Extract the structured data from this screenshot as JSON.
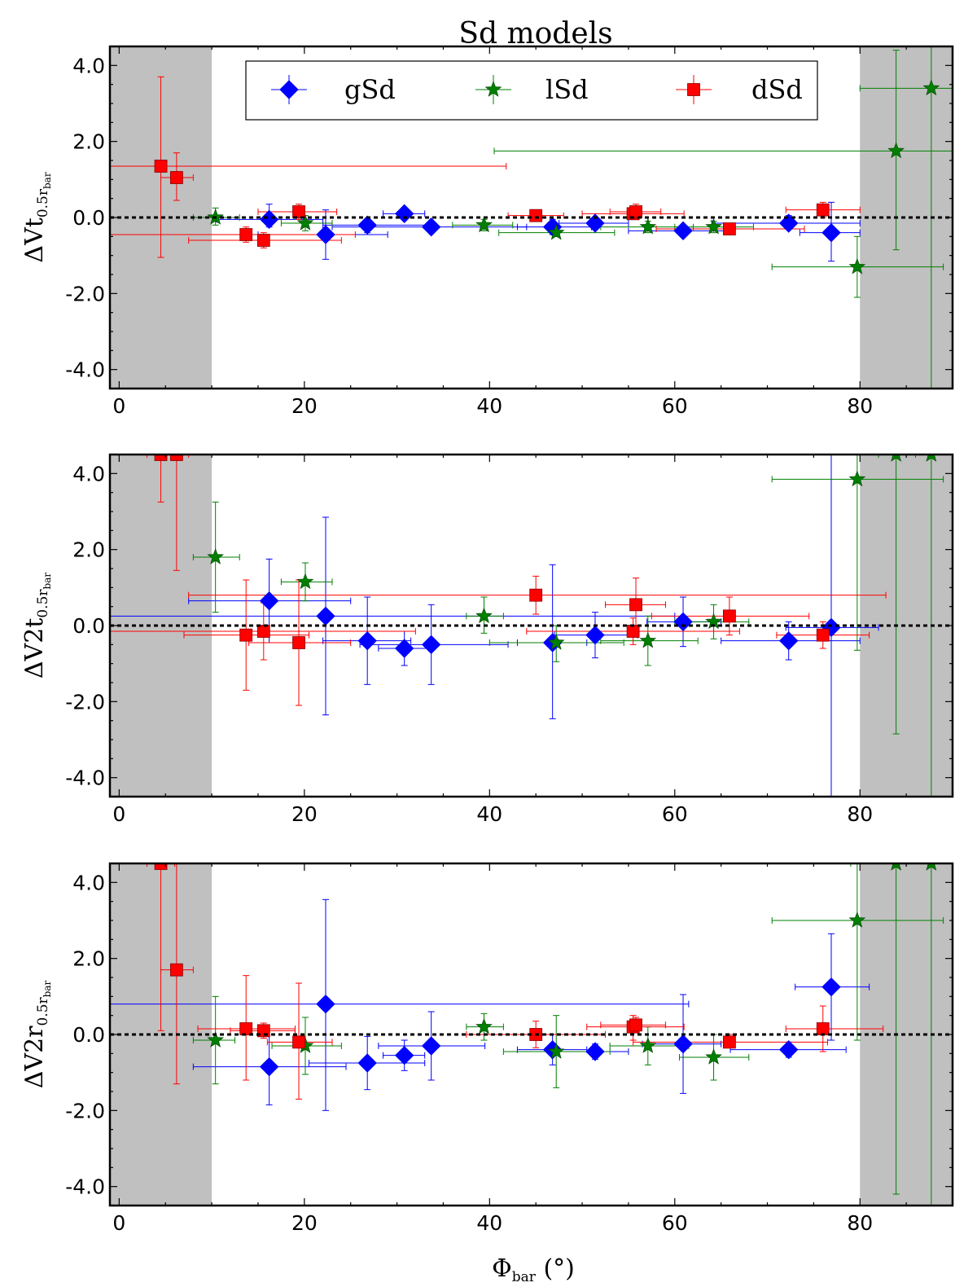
{
  "chart_data": {
    "type": "scatter",
    "title": "Sd models",
    "xlabel": "Φ",
    "xlabel_sub": "bar",
    "xlabel_unit": "(°)",
    "xlim": [
      -1,
      90
    ],
    "ylim": [
      -4.5,
      4.5
    ],
    "x_ticks": [
      "0",
      "20",
      "40",
      "60",
      "80"
    ],
    "y_ticks": [
      "4.0",
      "2.0",
      "0.0",
      "-2.0",
      "-4.0"
    ],
    "shaded_x_ranges": [
      [
        -1,
        10
      ],
      [
        80,
        90
      ]
    ],
    "reference_line_y": 0,
    "legend": [
      {
        "label": "gSd",
        "marker": "diamond",
        "color": "#0000ff"
      },
      {
        "label": "lSd",
        "marker": "star",
        "color": "#007f00"
      },
      {
        "label": "dSd",
        "marker": "square",
        "color": "#ff0000"
      }
    ],
    "panels": [
      {
        "ylabel_main": "ΔVt",
        "ylabel_sub": "0.5r",
        "ylabel_subsub": "bar",
        "series": [
          {
            "name": "gSd",
            "points": [
              {
                "x": 16.2,
                "y": -0.05,
                "xlo": 10.5,
                "xhi": 22.0,
                "ylo": -0.25,
                "yhi": 0.35
              },
              {
                "x": 22.3,
                "y": -0.45,
                "xlo": 15.0,
                "xhi": 29.0,
                "ylo": -1.1,
                "yhi": 0.2
              },
              {
                "x": 26.8,
                "y": -0.2,
                "xlo": 22.0,
                "xhi": 34.0,
                "ylo": -0.4,
                "yhi": -0.05
              },
              {
                "x": 30.8,
                "y": 0.1,
                "xlo": 28.5,
                "xhi": 33.0,
                "ylo": -0.05,
                "yhi": 0.25
              },
              {
                "x": 33.7,
                "y": -0.25,
                "xlo": 23.0,
                "xhi": 44.0,
                "ylo": -0.4,
                "yhi": -0.1
              },
              {
                "x": 46.8,
                "y": -0.25,
                "xlo": 43.0,
                "xhi": 51.0,
                "ylo": -0.45,
                "yhi": -0.05
              },
              {
                "x": 51.4,
                "y": -0.15,
                "xlo": 47.5,
                "xhi": 55.0,
                "ylo": -0.3,
                "yhi": 0.0
              },
              {
                "x": 60.9,
                "y": -0.35,
                "xlo": 55.0,
                "xhi": 66.5,
                "ylo": -0.5,
                "yhi": -0.2
              },
              {
                "x": 72.3,
                "y": -0.15,
                "xlo": 64.0,
                "xhi": 80.0,
                "ylo": -0.3,
                "yhi": 0.05
              },
              {
                "x": 76.9,
                "y": -0.4,
                "xlo": 73.5,
                "xhi": 80.0,
                "ylo": -1.15,
                "yhi": 0.4
              }
            ]
          },
          {
            "name": "lSd",
            "points": [
              {
                "x": 10.4,
                "y": 0.0,
                "xlo": 8.0,
                "xhi": 13.0,
                "ylo": -0.2,
                "yhi": 0.25
              },
              {
                "x": 20.1,
                "y": -0.15,
                "xlo": 17.5,
                "xhi": 23.0,
                "ylo": -0.35,
                "yhi": 0.05
              },
              {
                "x": 39.4,
                "y": -0.2,
                "xlo": 36.0,
                "xhi": 42.5,
                "ylo": -0.35,
                "yhi": -0.05
              },
              {
                "x": 47.2,
                "y": -0.4,
                "xlo": 41.0,
                "xhi": 53.5,
                "ylo": -0.5,
                "yhi": -0.25
              },
              {
                "x": 57.1,
                "y": -0.25,
                "xlo": 52.0,
                "xhi": 62.0,
                "ylo": -0.4,
                "yhi": -0.1
              },
              {
                "x": 64.2,
                "y": -0.25,
                "xlo": 60.0,
                "xhi": 68.5,
                "ylo": -0.4,
                "yhi": -0.1
              },
              {
                "x": 79.7,
                "y": -1.3,
                "xlo": 70.5,
                "xhi": 89.0,
                "ylo": -2.1,
                "yhi": -0.5
              },
              {
                "x": 83.9,
                "y": 1.75,
                "xlo": 40.5,
                "xhi": 90.0,
                "ylo": -0.85,
                "yhi": 4.4
              },
              {
                "x": 87.7,
                "y": 3.4,
                "xlo": 80.0,
                "xhi": 90.0,
                "ylo": -4.5,
                "yhi": 4.5
              }
            ]
          },
          {
            "name": "dSd",
            "points": [
              {
                "x": 4.5,
                "y": 1.35,
                "xlo": -1.0,
                "xhi": 41.8,
                "ylo": -1.05,
                "yhi": 3.7
              },
              {
                "x": 6.2,
                "y": 1.05,
                "xlo": 4.5,
                "xhi": 8.0,
                "ylo": 0.45,
                "yhi": 1.7
              },
              {
                "x": 13.7,
                "y": -0.45,
                "xlo": -1.0,
                "xhi": 25.5,
                "ylo": -0.65,
                "yhi": -0.25
              },
              {
                "x": 15.6,
                "y": -0.6,
                "xlo": 7.5,
                "xhi": 24.0,
                "ylo": -0.8,
                "yhi": -0.4
              },
              {
                "x": 19.4,
                "y": 0.15,
                "xlo": 15.0,
                "xhi": 23.5,
                "ylo": -0.05,
                "yhi": 0.35
              },
              {
                "x": 45.0,
                "y": 0.05,
                "xlo": 42.0,
                "xhi": 48.0,
                "ylo": -0.1,
                "yhi": 0.2
              },
              {
                "x": 55.5,
                "y": 0.1,
                "xlo": 50.0,
                "xhi": 61.0,
                "ylo": -0.05,
                "yhi": 0.3
              },
              {
                "x": 55.8,
                "y": 0.15,
                "xlo": 53.0,
                "xhi": 58.5,
                "ylo": -0.05,
                "yhi": 0.35
              },
              {
                "x": 65.9,
                "y": -0.3,
                "xlo": 58.0,
                "xhi": 74.0,
                "ylo": -0.45,
                "yhi": -0.15
              },
              {
                "x": 76.0,
                "y": 0.2,
                "xlo": 72.0,
                "xhi": 80.0,
                "ylo": 0.0,
                "yhi": 0.4
              }
            ]
          }
        ]
      },
      {
        "ylabel_main": "ΔV2t",
        "ylabel_sub": "0.5r",
        "ylabel_subsub": "bar",
        "series": [
          {
            "name": "gSd",
            "points": [
              {
                "x": 16.2,
                "y": 0.65,
                "xlo": 7.5,
                "xhi": 25.0,
                "ylo": -0.45,
                "yhi": 1.75
              },
              {
                "x": 22.3,
                "y": 0.25,
                "xlo": -1.0,
                "xhi": 60.0,
                "ylo": -2.35,
                "yhi": 2.85
              },
              {
                "x": 26.8,
                "y": -0.4,
                "xlo": 22.0,
                "xhi": 31.5,
                "ylo": -1.55,
                "yhi": 0.75
              },
              {
                "x": 30.8,
                "y": -0.6,
                "xlo": 28.0,
                "xhi": 33.5,
                "ylo": -1.05,
                "yhi": -0.15
              },
              {
                "x": 33.7,
                "y": -0.5,
                "xlo": 26.0,
                "xhi": 42.0,
                "ylo": -1.55,
                "yhi": 0.55
              },
              {
                "x": 46.8,
                "y": -0.45,
                "xlo": 43.0,
                "xhi": 50.5,
                "ylo": -2.45,
                "yhi": 1.6
              },
              {
                "x": 51.4,
                "y": -0.25,
                "xlo": 47.0,
                "xhi": 56.0,
                "ylo": -0.85,
                "yhi": 0.35
              },
              {
                "x": 60.9,
                "y": 0.1,
                "xlo": 57.0,
                "xhi": 65.0,
                "ylo": -0.55,
                "yhi": 0.75
              },
              {
                "x": 72.3,
                "y": -0.4,
                "xlo": 65.0,
                "xhi": 80.0,
                "ylo": -0.9,
                "yhi": 0.1
              },
              {
                "x": 76.9,
                "y": -0.05,
                "xlo": 72.0,
                "xhi": 82.0,
                "ylo": -4.5,
                "yhi": 4.5
              }
            ]
          },
          {
            "name": "lSd",
            "points": [
              {
                "x": 10.4,
                "y": 1.8,
                "xlo": 8.0,
                "xhi": 13.0,
                "ylo": 0.35,
                "yhi": 3.25
              },
              {
                "x": 20.1,
                "y": 1.15,
                "xlo": 17.5,
                "xhi": 23.0,
                "ylo": 0.65,
                "yhi": 1.65
              },
              {
                "x": 39.4,
                "y": 0.25,
                "xlo": 37.5,
                "xhi": 41.5,
                "ylo": -0.2,
                "yhi": 0.75
              },
              {
                "x": 47.2,
                "y": -0.45,
                "xlo": 40.0,
                "xhi": 54.5,
                "ylo": -0.95,
                "yhi": 0.0
              },
              {
                "x": 57.1,
                "y": -0.4,
                "xlo": 52.0,
                "xhi": 62.5,
                "ylo": -1.05,
                "yhi": 0.25
              },
              {
                "x": 64.2,
                "y": 0.1,
                "xlo": 60.0,
                "xhi": 68.0,
                "ylo": -0.35,
                "yhi": 0.55
              },
              {
                "x": 79.7,
                "y": 3.85,
                "xlo": 70.5,
                "xhi": 89.0,
                "ylo": -0.65,
                "yhi": 4.5
              },
              {
                "x": 83.9,
                "y": 4.5,
                "xlo": 82.0,
                "xhi": 86.0,
                "ylo": -2.85,
                "yhi": 4.5
              },
              {
                "x": 87.7,
                "y": 4.5,
                "xlo": 85.0,
                "xhi": 90.0,
                "ylo": -4.5,
                "yhi": 4.5
              }
            ]
          },
          {
            "name": "dSd",
            "points": [
              {
                "x": 4.5,
                "y": 4.5,
                "xlo": 3.0,
                "xhi": 6.0,
                "ylo": 3.25,
                "yhi": 4.5
              },
              {
                "x": 6.2,
                "y": 4.5,
                "xlo": 5.0,
                "xhi": 7.5,
                "ylo": 1.45,
                "yhi": 4.5
              },
              {
                "x": 13.7,
                "y": -0.25,
                "xlo": 7.0,
                "xhi": 20.5,
                "ylo": -1.7,
                "yhi": 1.2
              },
              {
                "x": 15.6,
                "y": -0.15,
                "xlo": -1.0,
                "xhi": 32.0,
                "ylo": -0.9,
                "yhi": 0.6
              },
              {
                "x": 19.4,
                "y": -0.45,
                "xlo": 14.0,
                "xhi": 25.0,
                "ylo": -2.1,
                "yhi": 1.2
              },
              {
                "x": 45.0,
                "y": 0.8,
                "xlo": 7.5,
                "xhi": 82.8,
                "ylo": 0.3,
                "yhi": 1.3
              },
              {
                "x": 55.5,
                "y": -0.15,
                "xlo": 44.0,
                "xhi": 67.0,
                "ylo": -0.5,
                "yhi": 0.2
              },
              {
                "x": 55.8,
                "y": 0.55,
                "xlo": 52.5,
                "xhi": 59.0,
                "ylo": -0.15,
                "yhi": 1.25
              },
              {
                "x": 65.9,
                "y": 0.25,
                "xlo": 57.5,
                "xhi": 74.5,
                "ylo": -0.25,
                "yhi": 0.75
              },
              {
                "x": 76.0,
                "y": -0.25,
                "xlo": 71.0,
                "xhi": 81.0,
                "ylo": -0.6,
                "yhi": 0.1
              }
            ]
          }
        ]
      },
      {
        "ylabel_main": "ΔV2r",
        "ylabel_sub": "0.5r",
        "ylabel_subsub": "bar",
        "series": [
          {
            "name": "gSd",
            "points": [
              {
                "x": 16.2,
                "y": -0.85,
                "xlo": 8.0,
                "xhi": 24.5,
                "ylo": -1.85,
                "yhi": 0.15
              },
              {
                "x": 22.3,
                "y": 0.8,
                "xlo": -1.0,
                "xhi": 61.5,
                "ylo": -2.0,
                "yhi": 3.55
              },
              {
                "x": 26.8,
                "y": -0.75,
                "xlo": 20.5,
                "xhi": 33.0,
                "ylo": -1.45,
                "yhi": -0.05
              },
              {
                "x": 30.8,
                "y": -0.55,
                "xlo": 28.5,
                "xhi": 33.0,
                "ylo": -0.95,
                "yhi": -0.15
              },
              {
                "x": 33.7,
                "y": -0.3,
                "xlo": 28.0,
                "xhi": 39.5,
                "ylo": -1.2,
                "yhi": 0.6
              },
              {
                "x": 46.8,
                "y": -0.4,
                "xlo": 43.0,
                "xhi": 50.5,
                "ylo": -0.8,
                "yhi": 0.0
              },
              {
                "x": 51.4,
                "y": -0.45,
                "xlo": 47.5,
                "xhi": 55.0,
                "ylo": -0.65,
                "yhi": -0.25
              },
              {
                "x": 60.9,
                "y": -0.25,
                "xlo": 56.5,
                "xhi": 65.0,
                "ylo": -1.55,
                "yhi": 1.05
              },
              {
                "x": 72.3,
                "y": -0.4,
                "xlo": 66.0,
                "xhi": 78.5,
                "ylo": -0.6,
                "yhi": -0.2
              },
              {
                "x": 76.9,
                "y": 1.25,
                "xlo": 73.0,
                "xhi": 81.0,
                "ylo": -0.15,
                "yhi": 2.65
              }
            ]
          },
          {
            "name": "lSd",
            "points": [
              {
                "x": 10.4,
                "y": -0.15,
                "xlo": 8.0,
                "xhi": 12.5,
                "ylo": -1.3,
                "yhi": 1.0
              },
              {
                "x": 20.1,
                "y": -0.3,
                "xlo": 16.5,
                "xhi": 24.0,
                "ylo": -1.05,
                "yhi": 0.45
              },
              {
                "x": 39.4,
                "y": 0.2,
                "xlo": 37.5,
                "xhi": 41.5,
                "ylo": -0.15,
                "yhi": 0.55
              },
              {
                "x": 47.2,
                "y": -0.45,
                "xlo": 41.5,
                "xhi": 53.0,
                "ylo": -1.4,
                "yhi": 0.5
              },
              {
                "x": 57.1,
                "y": -0.3,
                "xlo": 53.0,
                "xhi": 61.5,
                "ylo": -0.8,
                "yhi": 0.2
              },
              {
                "x": 64.2,
                "y": -0.6,
                "xlo": 60.5,
                "xhi": 68.0,
                "ylo": -1.2,
                "yhi": 0.0
              },
              {
                "x": 79.7,
                "y": 3.0,
                "xlo": 70.5,
                "xhi": 89.0,
                "ylo": -0.15,
                "yhi": 4.5
              },
              {
                "x": 83.9,
                "y": 4.5,
                "xlo": 79.0,
                "xhi": 90.0,
                "ylo": -4.2,
                "yhi": 4.5
              },
              {
                "x": 87.7,
                "y": 4.5,
                "xlo": 85.0,
                "xhi": 90.0,
                "ylo": -4.5,
                "yhi": 4.5
              }
            ]
          },
          {
            "name": "dSd",
            "points": [
              {
                "x": 4.5,
                "y": 4.5,
                "xlo": 3.0,
                "xhi": 6.0,
                "ylo": 0.1,
                "yhi": 4.5
              },
              {
                "x": 6.2,
                "y": 1.7,
                "xlo": 4.5,
                "xhi": 8.0,
                "ylo": -1.3,
                "yhi": 4.5
              },
              {
                "x": 13.7,
                "y": 0.15,
                "xlo": 8.5,
                "xhi": 19.0,
                "ylo": -1.2,
                "yhi": 1.55
              },
              {
                "x": 15.6,
                "y": 0.1,
                "xlo": 12.0,
                "xhi": 19.0,
                "ylo": -0.1,
                "yhi": 0.3
              },
              {
                "x": 19.4,
                "y": -0.2,
                "xlo": 16.0,
                "xhi": 23.0,
                "ylo": -1.7,
                "yhi": 1.35
              },
              {
                "x": 45.0,
                "y": 0.0,
                "xlo": 37.5,
                "xhi": 52.5,
                "ylo": -0.35,
                "yhi": 0.35
              },
              {
                "x": 55.5,
                "y": 0.2,
                "xlo": 50.5,
                "xhi": 61.0,
                "ylo": -0.15,
                "yhi": 0.5
              },
              {
                "x": 55.8,
                "y": 0.25,
                "xlo": 52.0,
                "xhi": 59.0,
                "ylo": 0.05,
                "yhi": 0.45
              },
              {
                "x": 65.9,
                "y": -0.2,
                "xlo": 55.5,
                "xhi": 76.5,
                "ylo": -0.35,
                "yhi": 0.0
              },
              {
                "x": 76.0,
                "y": 0.15,
                "xlo": 72.0,
                "xhi": 82.5,
                "ylo": -0.45,
                "yhi": 0.75
              }
            ]
          }
        ]
      }
    ]
  }
}
